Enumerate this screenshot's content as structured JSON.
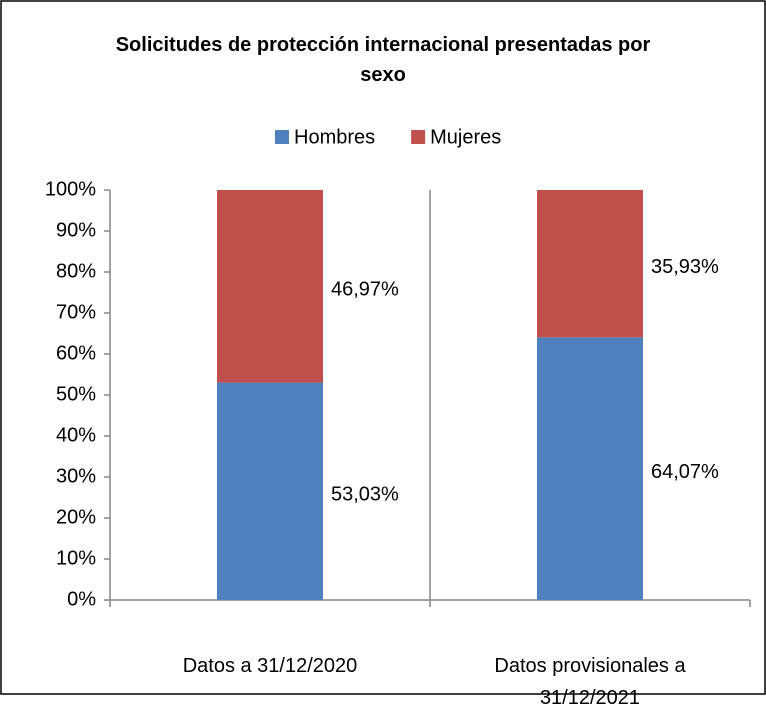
{
  "chart_data": {
    "type": "stacked_bar",
    "title": "Solicitudes de protección internacional presentadas por sexo",
    "categories": [
      "Datos a 31/12/2020",
      "Datos provisionales a 31/12/2021"
    ],
    "series": [
      {
        "name": "Hombres",
        "color": "#4f81bd",
        "values": [
          53.03,
          64.07
        ],
        "value_labels": [
          "53,03%",
          "64,07%"
        ]
      },
      {
        "name": "Mujeres",
        "color": "#c0504d",
        "values": [
          46.97,
          35.93
        ],
        "value_labels": [
          "46,97%",
          "35,93%"
        ]
      }
    ],
    "ylim": [
      0,
      100
    ],
    "yticks": [
      {
        "value": 0,
        "label": "0%"
      },
      {
        "value": 10,
        "label": "10%"
      },
      {
        "value": 20,
        "label": "20%"
      },
      {
        "value": 30,
        "label": "30%"
      },
      {
        "value": 40,
        "label": "40%"
      },
      {
        "value": 50,
        "label": "50%"
      },
      {
        "value": 60,
        "label": "60%"
      },
      {
        "value": 70,
        "label": "70%"
      },
      {
        "value": 80,
        "label": "80%"
      },
      {
        "value": 90,
        "label": "90%"
      },
      {
        "value": 100,
        "label": "100%"
      }
    ],
    "legend": "top",
    "grid": false
  }
}
